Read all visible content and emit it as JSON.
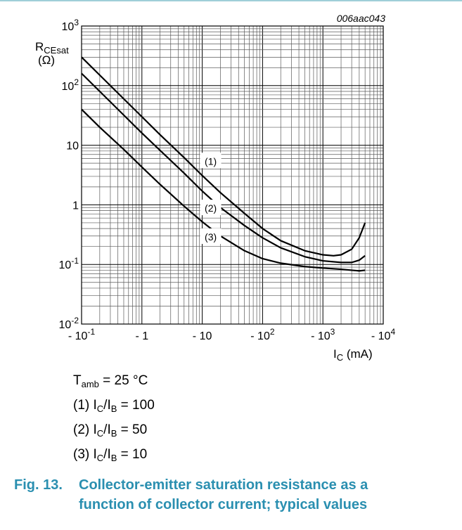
{
  "figure_id": "006aac043",
  "chart_data": {
    "type": "line",
    "x_scale": "log",
    "y_scale": "log",
    "xlim": [
      0.1,
      10000
    ],
    "ylim": [
      0.01,
      1000
    ],
    "grid": true,
    "ylabel_main": "R",
    "ylabel_sub": "CEsat",
    "yunit": "(Ω)",
    "xlabel_main": "I",
    "xlabel_sub": "C",
    "xunit": " (mA)",
    "x_ticks": [
      {
        "value": 0.1,
        "base": "- 10",
        "exp": "-1"
      },
      {
        "value": 1,
        "base": "- 1",
        "exp": ""
      },
      {
        "value": 10,
        "base": "- 10",
        "exp": ""
      },
      {
        "value": 100,
        "base": "- 10",
        "exp": "2"
      },
      {
        "value": 1000,
        "base": "- 10",
        "exp": "3"
      },
      {
        "value": 10000,
        "base": "- 10",
        "exp": "4"
      }
    ],
    "y_ticks": [
      {
        "value": 1000,
        "base": "10",
        "exp": "3"
      },
      {
        "value": 100,
        "base": "10",
        "exp": "2"
      },
      {
        "value": 10,
        "base": "10",
        "exp": ""
      },
      {
        "value": 1,
        "base": "1",
        "exp": ""
      },
      {
        "value": 0.1,
        "base": "10",
        "exp": "-1"
      },
      {
        "value": 0.01,
        "base": "10",
        "exp": "-2"
      }
    ],
    "series": [
      {
        "name": "(1)",
        "label_at": {
          "x": 10,
          "y": 5.4
        },
        "x": [
          0.1,
          0.2,
          0.5,
          1,
          2,
          5,
          10,
          20,
          50,
          100,
          200,
          500,
          1000,
          1500,
          2000,
          3000,
          4000,
          5000
        ],
        "y": [
          300,
          150,
          60,
          30,
          15,
          6.2,
          3.1,
          1.6,
          0.72,
          0.4,
          0.25,
          0.17,
          0.145,
          0.14,
          0.145,
          0.18,
          0.28,
          0.5
        ]
      },
      {
        "name": "(2)",
        "label_at": {
          "x": 10,
          "y": 0.88
        },
        "x": [
          0.1,
          0.2,
          0.5,
          1,
          2,
          5,
          10,
          20,
          50,
          100,
          200,
          500,
          1000,
          2000,
          3000,
          4000,
          5000
        ],
        "y": [
          160,
          80,
          32,
          16,
          8.2,
          3.4,
          1.7,
          0.9,
          0.45,
          0.28,
          0.19,
          0.135,
          0.115,
          0.108,
          0.108,
          0.118,
          0.14
        ]
      },
      {
        "name": "(3)",
        "label_at": {
          "x": 10,
          "y": 0.29
        },
        "x": [
          0.1,
          0.2,
          0.5,
          1,
          2,
          5,
          10,
          20,
          50,
          100,
          200,
          500,
          1000,
          2000,
          3000,
          4000,
          5000
        ],
        "y": [
          40,
          20,
          8.5,
          4.3,
          2.2,
          0.95,
          0.52,
          0.3,
          0.17,
          0.125,
          0.105,
          0.092,
          0.087,
          0.083,
          0.08,
          0.078,
          0.08
        ]
      }
    ]
  },
  "notes": {
    "tamb": {
      "pre": "T",
      "sub": "amb",
      "post": " = 25 °C"
    },
    "series_conditions": [
      {
        "pre": "(1) I",
        "sub1": "C",
        "mid": "/I",
        "sub2": "B",
        "post": " = 100"
      },
      {
        "pre": "(2) I",
        "sub1": "C",
        "mid": "/I",
        "sub2": "B",
        "post": " = 50"
      },
      {
        "pre": "(3) I",
        "sub1": "C",
        "mid": "/I",
        "sub2": "B",
        "post": " = 10"
      }
    ]
  },
  "caption": {
    "number": "Fig. 13.",
    "line1": "Collector-emitter saturation resistance as a",
    "line2": "function of collector current; typical values"
  }
}
